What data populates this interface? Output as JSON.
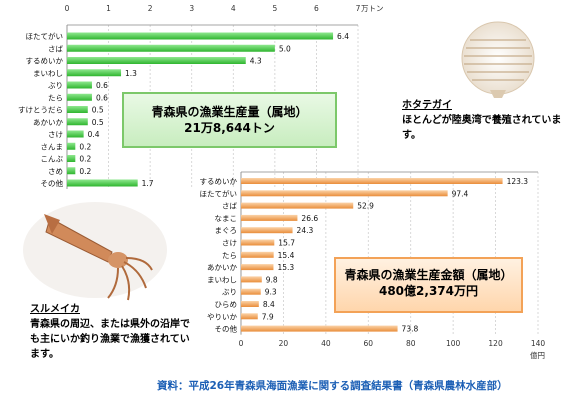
{
  "chart_data": [
    {
      "type": "bar",
      "orientation": "horizontal",
      "title": "青森県の漁業生産量（属地）",
      "subtitle": "21万8,644トン",
      "unit": "万トン",
      "xlim": [
        0,
        7
      ],
      "ticks": [
        0,
        1,
        2,
        3,
        4,
        5,
        6,
        7
      ],
      "grid": true,
      "bar_color": "#4fcf4f",
      "categories": [
        "ほたてがい",
        "さば",
        "するめいか",
        "まいわし",
        "ぶり",
        "たら",
        "すけとうだら",
        "あかいか",
        "さけ",
        "さんま",
        "こんぶ",
        "さめ",
        "その他"
      ],
      "values": [
        6.4,
        5.0,
        4.3,
        1.3,
        0.6,
        0.6,
        0.5,
        0.5,
        0.4,
        0.2,
        0.2,
        0.2,
        1.7
      ],
      "value_labels": [
        "6.4",
        "5.0",
        "4.3",
        "1.3",
        "0.6",
        "0.6",
        "0.5",
        "0.5",
        "0.4",
        "0.2",
        "0.2",
        "0.2",
        "1.7"
      ]
    },
    {
      "type": "bar",
      "orientation": "horizontal",
      "title": "青森県の漁業生産金額（属地）",
      "subtitle": "480億2,374万円",
      "unit": "億円",
      "xlim": [
        0,
        140
      ],
      "ticks": [
        0,
        20,
        40,
        60,
        80,
        100,
        120,
        140
      ],
      "grid": true,
      "bar_color": "#f2a55c",
      "categories": [
        "するめいか",
        "ほたてがい",
        "さば",
        "なまこ",
        "まぐろ",
        "さけ",
        "たら",
        "あかいか",
        "まいわし",
        "ぶり",
        "ひらめ",
        "やりいか",
        "その他"
      ],
      "values": [
        123.3,
        97.4,
        52.9,
        26.6,
        24.3,
        15.7,
        15.4,
        15.3,
        9.8,
        9.3,
        8.4,
        7.9,
        73.8
      ],
      "value_labels": [
        "123.3",
        "97.4",
        "52.9",
        "26.6",
        "24.3",
        "15.7",
        "15.4",
        "15.3",
        "9.8",
        "9.3",
        "8.4",
        "7.9",
        "73.8"
      ]
    }
  ],
  "captions": {
    "scallop": {
      "title": "ホタテガイ",
      "text": "ほとんどが陸奥湾で養殖されています。"
    },
    "squid": {
      "title": "スルメイカ",
      "text": "青森県の周辺、または県外の沿岸でも主にいか釣り漁業で漁獲されています。"
    }
  },
  "source": "資料：平成26年青森県海面漁業に関する調査結果書（青森県農林水産部）"
}
